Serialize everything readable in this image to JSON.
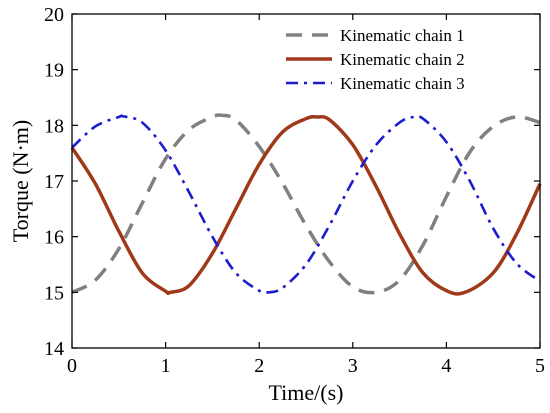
{
  "chart_data": {
    "type": "line",
    "title": "",
    "xlabel": "Time/(s)",
    "ylabel": "Torque (N·m)",
    "xlim": [
      0,
      5
    ],
    "ylim": [
      14,
      20
    ],
    "xticks": [
      0,
      1,
      2,
      3,
      4,
      5
    ],
    "yticks": [
      14,
      15,
      16,
      17,
      18,
      19,
      20
    ],
    "xtick_labels": [
      "0",
      "1",
      "2",
      "3",
      "4",
      "5"
    ],
    "ytick_labels": [
      "14",
      "15",
      "16",
      "17",
      "18",
      "19",
      "20"
    ],
    "grid": false,
    "legend_position": "top-right",
    "series": [
      {
        "name": "Kinematic chain 1",
        "color": "#808080",
        "style": "dashed",
        "x": [
          0,
          0.25,
          0.5,
          0.75,
          1.0,
          1.25,
          1.5,
          1.6,
          1.75,
          2.0,
          2.25,
          2.5,
          2.75,
          3.0,
          3.25,
          3.5,
          3.75,
          4.0,
          4.25,
          4.5,
          4.75,
          5.0
        ],
        "y": [
          15.0,
          15.22,
          15.78,
          16.6,
          17.4,
          17.92,
          18.15,
          18.18,
          18.1,
          17.62,
          16.96,
          16.2,
          15.55,
          15.1,
          15.0,
          15.22,
          15.85,
          16.72,
          17.52,
          17.98,
          18.15,
          18.05
        ]
      },
      {
        "name": "Kinematic chain 2",
        "color": "#a0391a",
        "style": "solid",
        "x": [
          0,
          0.25,
          0.5,
          0.75,
          1.0,
          1.05,
          1.25,
          1.5,
          1.75,
          2.0,
          2.25,
          2.5,
          2.62,
          2.75,
          3.0,
          3.25,
          3.5,
          3.75,
          4.0,
          4.2,
          4.5,
          4.75,
          5.0
        ],
        "y": [
          17.6,
          16.95,
          16.1,
          15.35,
          15.02,
          15.0,
          15.12,
          15.7,
          16.5,
          17.3,
          17.88,
          18.12,
          18.15,
          18.1,
          17.65,
          16.9,
          16.05,
          15.35,
          15.03,
          15.0,
          15.35,
          16.05,
          16.95
        ]
      },
      {
        "name": "Kinematic chain 3",
        "color": "#1c1cd0",
        "style": "dash-dot",
        "x": [
          0,
          0.25,
          0.5,
          0.55,
          0.75,
          1.0,
          1.25,
          1.5,
          1.75,
          2.0,
          2.1,
          2.25,
          2.5,
          2.75,
          3.0,
          3.25,
          3.5,
          3.65,
          3.75,
          4.0,
          4.25,
          4.5,
          4.75,
          5.0
        ],
        "y": [
          17.6,
          17.98,
          18.15,
          18.16,
          18.05,
          17.55,
          16.8,
          16.0,
          15.35,
          15.03,
          15.0,
          15.08,
          15.5,
          16.2,
          17.0,
          17.65,
          18.05,
          18.15,
          18.12,
          17.7,
          17.0,
          16.15,
          15.52,
          15.2
        ]
      }
    ]
  }
}
